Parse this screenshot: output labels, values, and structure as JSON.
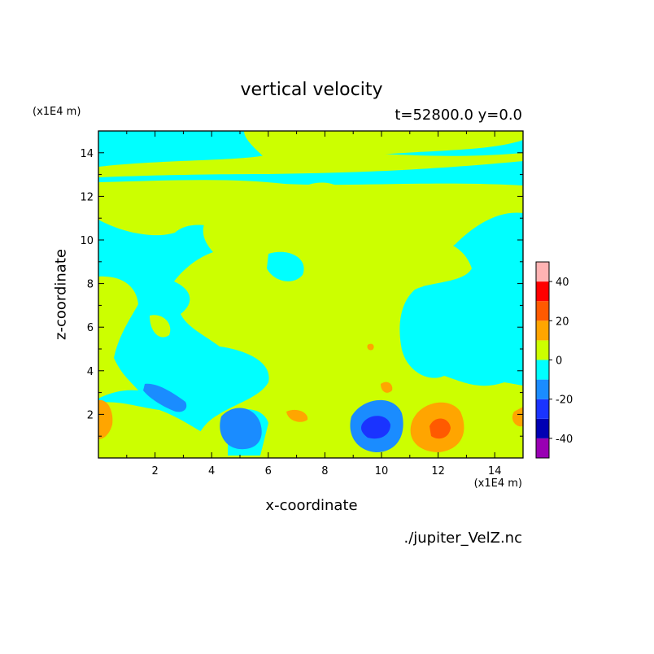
{
  "chart_data": {
    "type": "heatmap",
    "title": "vertical velocity",
    "subtitle": "t=52800.0 y=0.0",
    "xlabel": "x-coordinate",
    "ylabel": "z-coordinate",
    "x_unit": "(x1E4 m)",
    "y_unit": "(x1E4 m)",
    "source": "./jupiter_VelZ.nc",
    "xlim": [
      0,
      15
    ],
    "ylim": [
      0,
      15
    ],
    "x_ticks": [
      "2",
      "4",
      "6",
      "8",
      "10",
      "12",
      "14"
    ],
    "y_ticks": [
      "2",
      "4",
      "6",
      "8",
      "10",
      "12",
      "14"
    ],
    "colorbar": {
      "levels": [
        -50,
        -40,
        -30,
        -20,
        -10,
        0,
        10,
        20,
        30,
        40,
        50
      ],
      "colors": [
        "#9900b3",
        "#0000b3",
        "#1a33ff",
        "#1a8cff",
        "#00ffff",
        "#ccff00",
        "#ffa500",
        "#ff5a00",
        "#ff0000",
        "#ffb3b3"
      ],
      "tick_labels": [
        "40",
        "20",
        "0",
        "-20",
        "-40"
      ],
      "tick_values": [
        40,
        20,
        0,
        -20,
        -40
      ]
    },
    "background_level_color": "#00ffff",
    "features": [
      {
        "kind": "updraft-band",
        "x": [
          3.5,
          13.0
        ],
        "z": [
          4.0,
          12.0
        ],
        "sign": "positive",
        "level": "0 to 10"
      },
      {
        "kind": "updraft-band",
        "x": [
          0.0,
          15.0
        ],
        "z": [
          13.0,
          14.0
        ],
        "sign": "positive",
        "level": "0 to 10"
      },
      {
        "kind": "updraft",
        "x": 12.0,
        "z": 1.5,
        "level": "10 to 30",
        "max": 25
      },
      {
        "kind": "updraft",
        "x": 0.2,
        "z": 2.0,
        "level": "10 to 20",
        "max": 15
      },
      {
        "kind": "updraft",
        "x": 14.9,
        "z": 1.8,
        "level": "10 to 20",
        "max": 15
      },
      {
        "kind": "updraft",
        "x": 7.0,
        "z": 2.0,
        "level": "10 to 20",
        "max": 12
      },
      {
        "kind": "updraft",
        "x": 10.1,
        "z": 3.3,
        "level": "10 to 20",
        "max": 11
      },
      {
        "kind": "updraft",
        "x": 9.5,
        "z": 5.2,
        "level": "10 to 20",
        "max": 10
      },
      {
        "kind": "downdraft",
        "x": 9.6,
        "z": 1.4,
        "level": "-10 to -40",
        "min": -35
      },
      {
        "kind": "downdraft",
        "x": 5.1,
        "z": 1.4,
        "level": "-10 to -20",
        "min": -15
      },
      {
        "kind": "downdraft",
        "x": 2.3,
        "z": 2.8,
        "level": "-10 to -20",
        "min": -12
      }
    ]
  }
}
